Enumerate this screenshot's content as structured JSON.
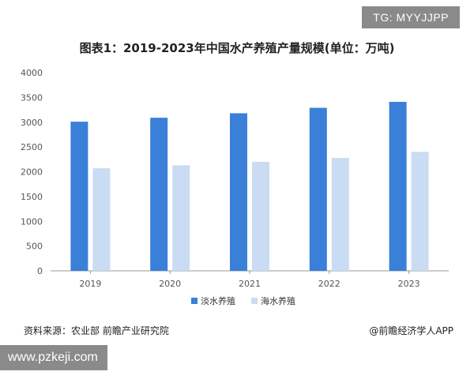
{
  "overlay": {
    "tg_tag": "TG: MYYJJPP",
    "site": "www.pzkeji.com"
  },
  "footer": {
    "source": "资料来源：农业部 前瞻产业研究院",
    "credit": "@前瞻经济学人APP"
  },
  "colors": {
    "freshwater": "#3a7fd8",
    "seawater": "#c9dcf3",
    "axis": "#999999",
    "tick_text": "#555555"
  },
  "chart_data": {
    "type": "bar",
    "title": "图表1：2019-2023年中国水产养殖产量规模(单位：万吨)",
    "categories": [
      "2019",
      "2020",
      "2021",
      "2022",
      "2023"
    ],
    "series": [
      {
        "name": "淡水养殖",
        "values": [
          3010,
          3090,
          3180,
          3290,
          3410
        ]
      },
      {
        "name": "海水养殖",
        "values": [
          2070,
          2130,
          2200,
          2280,
          2400
        ]
      }
    ],
    "ylim": [
      0,
      4000
    ],
    "yticks": [
      0,
      500,
      1000,
      1500,
      2000,
      2500,
      3000,
      3500,
      4000
    ],
    "grid": false,
    "legend_position": "bottom-center"
  }
}
